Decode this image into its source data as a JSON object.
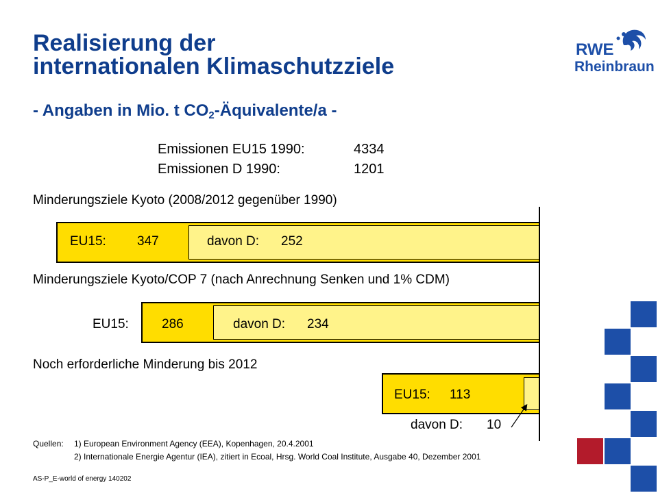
{
  "title_line1": "Realisierung der",
  "title_line2": "internationalen Klimaschutzziele",
  "subtitle_pre": "- Angaben in Mio. t CO",
  "subtitle_sub": "2",
  "subtitle_post": "-Äquivalente/a -",
  "logo": {
    "brand": "RWE",
    "name": "Rheinbraun"
  },
  "emissions": [
    {
      "label": "Emissionen EU15 1990:",
      "value": "4334"
    },
    {
      "label": "Emissionen D 1990:",
      "value": "1201"
    }
  ],
  "chart_data": {
    "type": "bar",
    "orientation": "horizontal",
    "stacked": false,
    "scale_anchor": "right",
    "groups": [
      {
        "heading": "Minderungsziele Kyoto (2008/2012 gegenüber 1990)",
        "eu15_label": "EU15:",
        "eu15_value": 347,
        "d_label": "davon D:",
        "d_value": 252
      },
      {
        "heading": "Minderungsziele Kyoto/COP 7 (nach Anrechnung Senken und 1% CDM)",
        "eu15_label": "EU15:",
        "eu15_value": 286,
        "d_label": "davon D:",
        "d_value": 234
      },
      {
        "heading": "Noch erforderliche Minderung bis 2012",
        "eu15_label": "EU15:",
        "eu15_value": 113,
        "d_label": "davon D:",
        "d_value": 10
      }
    ],
    "colors": {
      "eu15": "#ffdd00",
      "d": "#fff38a",
      "outline": "#000000"
    }
  },
  "sources": {
    "label": "Quellen:",
    "items": [
      "1) European Environment Agency (EEA), Kopenhagen, 20.4.2001",
      "2) Internationale Energie Agentur (IEA), zitiert in Ecoal, Hrsg. World Coal Institute, Ausgabe 40, Dezember 2001"
    ]
  },
  "footer": "AS-P_E-world of energy 140202",
  "colors": {
    "title": "#0f3d8c",
    "square_blue": "#1d4fa8",
    "square_red": "#b31b2b"
  }
}
